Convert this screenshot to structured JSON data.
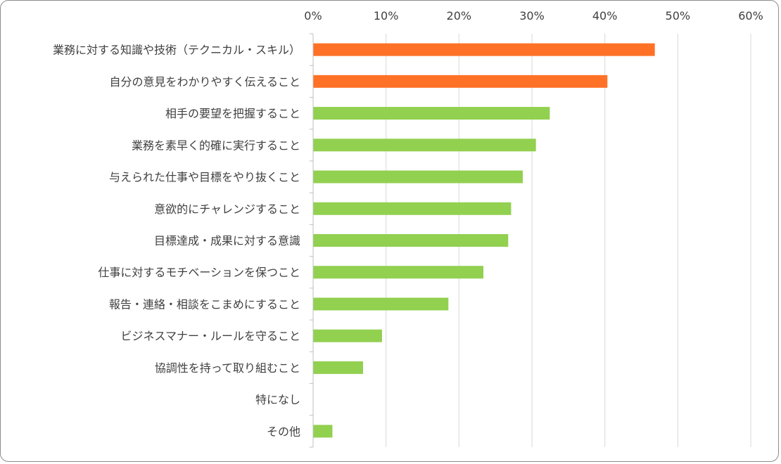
{
  "chart_data": {
    "type": "bar",
    "orientation": "horizontal",
    "title": "",
    "xlabel": "",
    "ylabel": "",
    "xlim": [
      0,
      60
    ],
    "tick_labels": [
      "0%",
      "10%",
      "20%",
      "30%",
      "40%",
      "50%",
      "60%"
    ],
    "grid": true,
    "x_axis_position": "top",
    "categories": [
      "業務に対する知識や技術（テクニカル・スキル）",
      "自分の意見をわかりやすく伝えること",
      "相手の要望を把握すること",
      "業務を素早く的確に実行すること",
      "与えられた仕事や目標をやり抜くこと",
      "意欲的にチャレンジすること",
      "目標達成・成果に対する意識",
      "仕事に対するモチベーションを保つこと",
      "報告・連絡・相談をこまめにすること",
      "ビジネスマナー・ルールを守ること",
      "協調性を持って取り組むこと",
      "特になし",
      "その他"
    ],
    "values": [
      46.8,
      40.3,
      32.4,
      30.5,
      28.7,
      27.1,
      26.7,
      23.3,
      18.5,
      9.4,
      6.8,
      0,
      2.6
    ],
    "bar_colors": [
      "#ff7126",
      "#ff7126",
      "#92d050",
      "#92d050",
      "#92d050",
      "#92d050",
      "#92d050",
      "#92d050",
      "#92d050",
      "#92d050",
      "#92d050",
      "#92d050",
      "#92d050"
    ]
  },
  "colors": {
    "highlight": "#ff7126",
    "default": "#92d050",
    "grid": "#d9d9d9",
    "axis": "#bfbfbf",
    "text": "#404040"
  }
}
